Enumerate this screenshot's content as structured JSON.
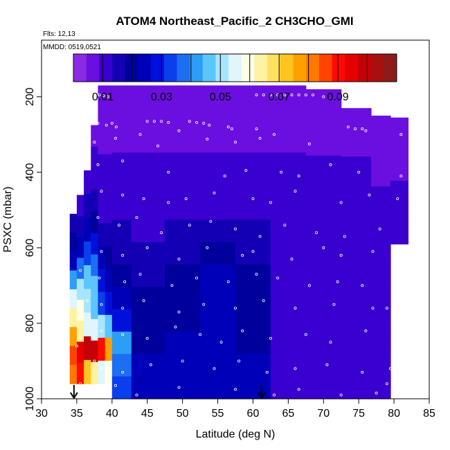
{
  "chart_data": {
    "type": "heatmap",
    "title": "ATOM4 Northeast_Pacific_2 CH3CHO_GMI",
    "annotations": {
      "flights": "Flts: 12,13",
      "dates": "MMDD: 0519,0521"
    },
    "xlabel": "Latitude (deg N)",
    "ylabel": "PSXC (mbar)",
    "xlim": [
      30,
      85
    ],
    "ylim": [
      1000,
      50
    ],
    "y_reversed": true,
    "xticks": [
      "30",
      "35",
      "40",
      "45",
      "50",
      "55",
      "60",
      "65",
      "70",
      "75",
      "80",
      "85"
    ],
    "yticks": [
      "200",
      "400",
      "600",
      "800",
      "1000"
    ],
    "grid": false,
    "colorbar": {
      "placement": "top inside plot",
      "range": [
        0,
        0.11
      ],
      "tick_values": [
        0.01,
        0.03,
        0.05,
        0.07,
        0.09
      ],
      "tick_labels": [
        "0.01",
        "0.03",
        "0.05",
        "0.07",
        "0.09"
      ],
      "colors": [
        "#8a2be2",
        "#6a0fe0",
        "#3a00d0",
        "#1400b4",
        "#00009c",
        "#0000b8",
        "#0010dc",
        "#0a40ec",
        "#1c6ef2",
        "#2c9ef6",
        "#5cc6fa",
        "#a8e4fc",
        "#e0f6ff",
        "#ffffe6",
        "#fff2a0",
        "#ffe060",
        "#ffc420",
        "#ffa000",
        "#ff7800",
        "#ff4400",
        "#ff0a00",
        "#e60000",
        "#c40008",
        "#a81010",
        "#8c1c1c"
      ]
    },
    "columns": [
      {
        "lat": 34.5,
        "pmin": 510,
        "pmax": 960,
        "values": [
          0.014,
          0.018,
          0.025,
          0.04,
          0.055,
          0.062,
          0.077,
          0.085,
          0.083
        ]
      },
      {
        "lat": 35.5,
        "pmin": 460,
        "pmax": 960,
        "values": [
          0.012,
          0.016,
          0.026,
          0.038,
          0.052,
          0.058,
          0.064,
          0.094,
          0.088
        ]
      },
      {
        "lat": 36.5,
        "pmin": 395,
        "pmax": 960,
        "values": [
          0.012,
          0.015,
          0.022,
          0.033,
          0.045,
          0.052,
          0.057,
          0.098,
          0.072
        ]
      },
      {
        "lat": 37.5,
        "pmin": 275,
        "pmax": 960,
        "values": [
          0.007,
          0.009,
          0.012,
          0.014,
          0.019,
          0.03,
          0.037,
          0.044,
          0.047,
          0.056,
          0.097,
          0.062
        ]
      },
      {
        "lat": 38.5,
        "pmin": 170,
        "pmax": 960,
        "values": [
          0.005,
          0.006,
          0.008,
          0.009,
          0.011,
          0.013,
          0.016,
          0.022,
          0.03,
          0.034,
          0.05,
          0.091,
          0.055
        ]
      },
      {
        "lat": 39.5,
        "pmin": 170,
        "pmax": 960,
        "values": [
          0.005,
          0.006,
          0.008,
          0.009,
          0.011,
          0.013,
          0.015,
          0.019,
          0.024,
          0.028,
          0.045,
          0.078,
          0.06
        ]
      },
      {
        "lat": 40.5,
        "pmin": 170,
        "pmax": 1000,
        "values": [
          0.005,
          0.006,
          0.008,
          0.009,
          0.011,
          0.012,
          0.014,
          0.016,
          0.02,
          0.022,
          0.03,
          0.04,
          0.038,
          0.033
        ]
      },
      {
        "lat": 45,
        "pmin": 170,
        "pmax": 1000,
        "values": [
          0.005,
          0.006,
          0.008,
          0.009,
          0.011,
          0.012,
          0.013,
          0.015,
          0.017,
          0.018,
          0.02,
          0.021,
          0.022,
          0.023
        ]
      },
      {
        "lat": 50,
        "pmin": 170,
        "pmax": 1000,
        "values": [
          0.005,
          0.006,
          0.008,
          0.009,
          0.01,
          0.012,
          0.014,
          0.016,
          0.018,
          0.019,
          0.021,
          0.022,
          0.023,
          0.024
        ]
      },
      {
        "lat": 55,
        "pmin": 170,
        "pmax": 1000,
        "values": [
          0.005,
          0.006,
          0.008,
          0.009,
          0.01,
          0.012,
          0.015,
          0.019,
          0.023,
          0.022,
          0.023,
          0.024,
          0.025,
          0.026
        ]
      },
      {
        "lat": 60,
        "pmin": 170,
        "pmax": 1000,
        "values": [
          0.005,
          0.006,
          0.008,
          0.009,
          0.01,
          0.012,
          0.014,
          0.017,
          0.019,
          0.019,
          0.02,
          0.021,
          0.022,
          0.022
        ]
      },
      {
        "lat": 65,
        "pmin": 170,
        "pmax": 1000,
        "values": [
          0.005,
          0.006,
          0.008,
          0.009,
          0.01,
          0.011,
          0.012,
          0.013,
          0.013,
          0.012,
          0.012,
          0.012,
          0.013,
          0.013
        ]
      },
      {
        "lat": 70,
        "pmin": 180,
        "pmax": 1000,
        "values": [
          0.005,
          0.006,
          0.008,
          0.009,
          0.01,
          0.011,
          0.012,
          0.013,
          0.013,
          0.012,
          0.012,
          0.012,
          0.013,
          0.013
        ]
      },
      {
        "lat": 75,
        "pmin": 230,
        "pmax": 1000,
        "values": [
          0.006,
          0.008,
          0.009,
          0.01,
          0.011,
          0.012,
          0.012,
          0.012,
          0.012,
          0.012,
          0.012,
          0.013
        ]
      },
      {
        "lat": 78.5,
        "pmin": 250,
        "pmax": 1000,
        "values": [
          0.006,
          0.007,
          0.008,
          0.009,
          0.01,
          0.011,
          0.012,
          0.012,
          0.012,
          0.012,
          0.012,
          0.013
        ]
      },
      {
        "lat": 80.5,
        "pmin": 255,
        "pmax": 590,
        "values": [
          0.006,
          0.007,
          0.008,
          0.009,
          0.01,
          0.011
        ]
      }
    ],
    "observation_markers": [
      [
        38.2,
        195
      ],
      [
        38.8,
        197
      ],
      [
        39.4,
        200
      ],
      [
        60.5,
        195
      ],
      [
        61.5,
        195
      ],
      [
        62.5,
        195
      ],
      [
        63.5,
        195
      ],
      [
        64.5,
        195
      ],
      [
        65.5,
        195
      ],
      [
        66.5,
        195
      ],
      [
        67.5,
        195
      ],
      [
        68.5,
        195
      ],
      [
        70.0,
        200
      ],
      [
        38.0,
        270
      ],
      [
        39.2,
        275
      ],
      [
        40.0,
        270
      ],
      [
        40.6,
        280
      ],
      [
        45.0,
        265
      ],
      [
        46.0,
        265
      ],
      [
        47.0,
        265
      ],
      [
        48.0,
        268
      ],
      [
        51.0,
        265
      ],
      [
        52.0,
        268
      ],
      [
        53.0,
        270
      ],
      [
        53.8,
        275
      ],
      [
        56.5,
        280
      ],
      [
        57.0,
        285
      ],
      [
        60.5,
        285
      ],
      [
        73.5,
        280
      ],
      [
        74.5,
        285
      ],
      [
        75.5,
        285
      ],
      [
        37.5,
        320
      ],
      [
        40.5,
        310
      ],
      [
        44.0,
        300
      ],
      [
        46.5,
        330
      ],
      [
        49.5,
        290
      ],
      [
        53.5,
        312
      ],
      [
        57.5,
        320
      ],
      [
        61.0,
        310
      ],
      [
        63.0,
        300
      ],
      [
        68.0,
        325
      ],
      [
        76.0,
        290
      ],
      [
        81.0,
        300
      ],
      [
        38.0,
        380
      ],
      [
        41.5,
        370
      ],
      [
        48.0,
        400
      ],
      [
        56.0,
        410
      ],
      [
        59.0,
        395
      ],
      [
        64.0,
        400
      ],
      [
        66.5,
        410
      ],
      [
        71.0,
        380
      ],
      [
        75.0,
        400
      ],
      [
        81.0,
        410
      ],
      [
        38.5,
        450
      ],
      [
        41.5,
        460
      ],
      [
        44.5,
        470
      ],
      [
        48.0,
        480
      ],
      [
        50.5,
        470
      ],
      [
        54.5,
        455
      ],
      [
        60.0,
        470
      ],
      [
        62.5,
        480
      ],
      [
        66.0,
        450
      ],
      [
        72.5,
        480
      ],
      [
        76.5,
        460
      ],
      [
        80.5,
        470
      ],
      [
        38.0,
        520
      ],
      [
        41.0,
        540
      ],
      [
        43.5,
        520
      ],
      [
        47.0,
        560
      ],
      [
        51.0,
        540
      ],
      [
        54.0,
        530
      ],
      [
        57.5,
        550
      ],
      [
        61.0,
        570
      ],
      [
        64.5,
        540
      ],
      [
        69.0,
        560
      ],
      [
        73.0,
        570
      ],
      [
        78.0,
        550
      ],
      [
        38.5,
        610
      ],
      [
        41.5,
        620
      ],
      [
        45.0,
        600
      ],
      [
        49.5,
        630
      ],
      [
        53.5,
        600
      ],
      [
        58.5,
        620
      ],
      [
        60.0,
        610
      ],
      [
        65.5,
        630
      ],
      [
        70.0,
        600
      ],
      [
        72.5,
        620
      ],
      [
        77.0,
        610
      ],
      [
        38.2,
        680
      ],
      [
        41.8,
        690
      ],
      [
        44.0,
        670
      ],
      [
        48.5,
        700
      ],
      [
        52.0,
        680
      ],
      [
        56.5,
        690
      ],
      [
        60.5,
        670
      ],
      [
        63.5,
        680
      ],
      [
        68.0,
        700
      ],
      [
        72.0,
        690
      ],
      [
        75.5,
        700
      ],
      [
        35.5,
        660
      ],
      [
        36.5,
        740
      ],
      [
        38.5,
        750
      ],
      [
        41.5,
        760
      ],
      [
        44.5,
        740
      ],
      [
        49.5,
        770
      ],
      [
        53.0,
        750
      ],
      [
        57.5,
        760
      ],
      [
        61.5,
        740
      ],
      [
        66.0,
        760
      ],
      [
        71.5,
        750
      ],
      [
        77.0,
        760
      ],
      [
        79.0,
        760
      ],
      [
        38.5,
        820
      ],
      [
        41.5,
        830
      ],
      [
        45.0,
        840
      ],
      [
        49.0,
        810
      ],
      [
        52.5,
        830
      ],
      [
        55.5,
        850
      ],
      [
        58.5,
        820
      ],
      [
        62.5,
        840
      ],
      [
        67.5,
        830
      ],
      [
        71.0,
        850
      ],
      [
        76.0,
        820
      ],
      [
        35.0,
        860
      ],
      [
        37.5,
        900
      ],
      [
        38.5,
        920
      ],
      [
        41.5,
        930
      ],
      [
        45.5,
        910
      ],
      [
        50.0,
        900
      ],
      [
        54.5,
        920
      ],
      [
        58.0,
        900
      ],
      [
        62.0,
        930
      ],
      [
        66.0,
        920
      ],
      [
        70.5,
        910
      ],
      [
        75.5,
        930
      ],
      [
        79.5,
        920
      ],
      [
        35.5,
        960
      ],
      [
        38.0,
        975
      ],
      [
        40.5,
        965
      ],
      [
        43.5,
        990
      ],
      [
        49.5,
        970
      ],
      [
        57.5,
        975
      ],
      [
        63.0,
        990
      ],
      [
        66.5,
        975
      ],
      [
        72.5,
        990
      ],
      [
        77.5,
        985
      ],
      [
        79.0,
        960
      ]
    ],
    "arrows": [
      34.6,
      61.2
    ]
  }
}
